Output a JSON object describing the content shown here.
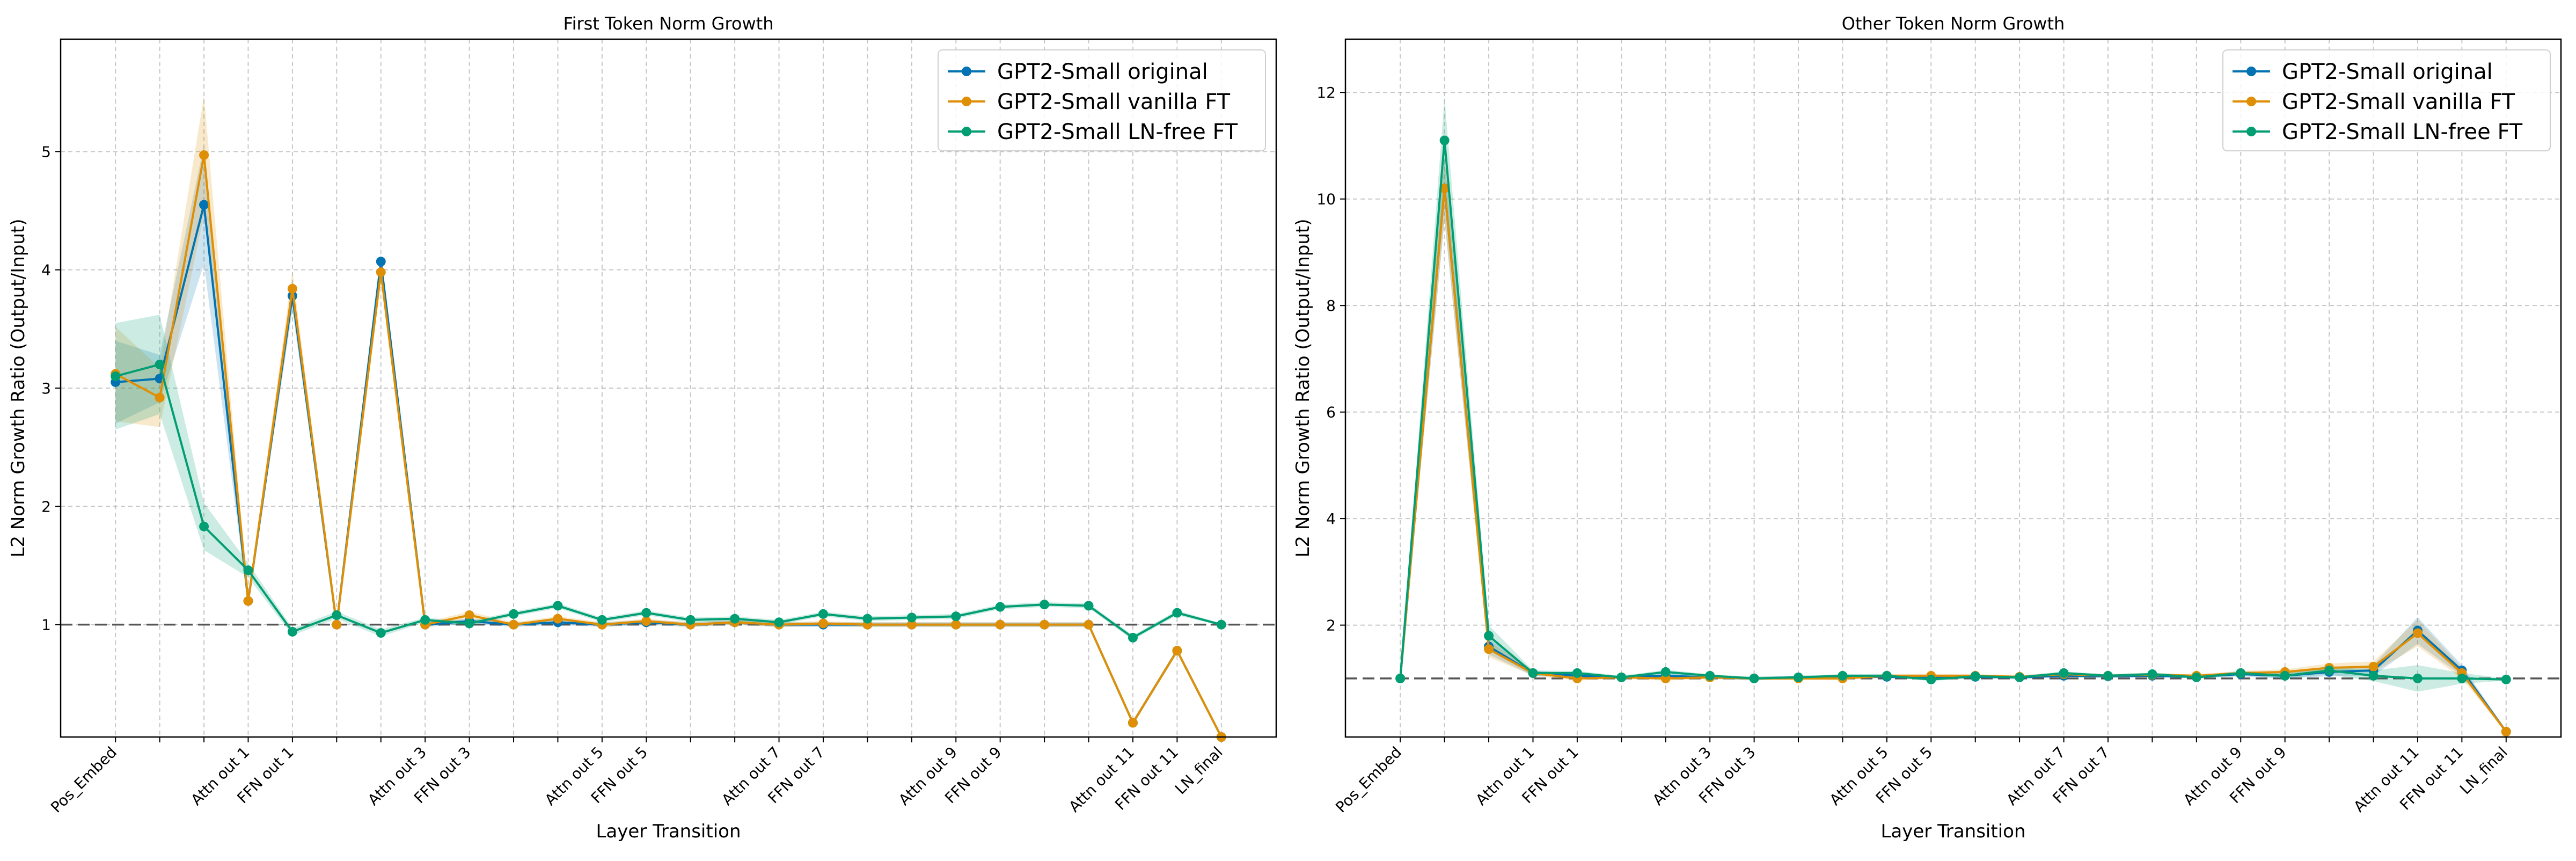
{
  "chart_data": [
    {
      "type": "line",
      "title": "First Token Norm Growth",
      "xlabel": "Layer Transition",
      "ylabel": "L2 Norm Growth Ratio (Output/Input)",
      "x_tick_labels": [
        "Pos_Embed",
        "",
        "",
        "Attn out 1",
        "FFN out 1",
        "",
        "",
        "Attn out 3",
        "FFN out 3",
        "",
        "",
        "Attn out 5",
        "FFN out 5",
        "",
        "",
        "Attn out 7",
        "FFN out 7",
        "",
        "",
        "Attn out 9",
        "FFN out 9",
        "",
        "",
        "Attn out 11",
        "FFN out 11",
        "LN_final"
      ],
      "ylim": [
        0.05,
        5.95
      ],
      "y_ticks": [
        1,
        2,
        3,
        4,
        5
      ],
      "reference_line": 1.0,
      "grid": true,
      "legend_position": "top-right",
      "series": [
        {
          "name": "GPT2-Small original",
          "color": "#0173b2",
          "values": [
            3.05,
            3.08,
            4.55,
            1.2,
            3.78,
            1.0,
            4.07,
            1.0,
            1.03,
            1.0,
            1.02,
            1.0,
            1.02,
            1.0,
            1.02,
            1.0,
            1.0,
            1.0,
            1.0,
            1.0,
            1.0,
            1.0,
            1.0,
            0.17,
            0.78,
            0.05
          ],
          "band": [
            0.35,
            0.2,
            0.5,
            0.04,
            0.12,
            0.02,
            0.06,
            0.02,
            0.02,
            0.02,
            0.02,
            0.02,
            0.02,
            0.02,
            0.02,
            0.02,
            0.02,
            0.02,
            0.02,
            0.02,
            0.02,
            0.02,
            0.02,
            0.02,
            0.02,
            0.01
          ]
        },
        {
          "name": "GPT2-Small vanilla FT",
          "color": "#de8f05",
          "values": [
            3.12,
            2.92,
            4.97,
            1.2,
            3.84,
            1.0,
            3.98,
            1.0,
            1.08,
            1.0,
            1.05,
            1.0,
            1.03,
            1.0,
            1.02,
            1.0,
            1.01,
            1.0,
            1.0,
            1.0,
            1.0,
            1.0,
            1.0,
            0.17,
            0.78,
            0.05
          ],
          "band": [
            0.4,
            0.25,
            0.5,
            0.04,
            0.15,
            0.02,
            0.06,
            0.02,
            0.03,
            0.02,
            0.02,
            0.02,
            0.02,
            0.02,
            0.02,
            0.02,
            0.02,
            0.02,
            0.02,
            0.02,
            0.02,
            0.02,
            0.02,
            0.02,
            0.02,
            0.01
          ]
        },
        {
          "name": "GPT2-Small LN-free FT",
          "color": "#029e73",
          "values": [
            3.1,
            3.2,
            1.83,
            1.46,
            0.94,
            1.08,
            0.93,
            1.04,
            1.01,
            1.09,
            1.16,
            1.04,
            1.1,
            1.04,
            1.05,
            1.02,
            1.09,
            1.05,
            1.06,
            1.07,
            1.15,
            1.17,
            1.16,
            0.89,
            1.1,
            1.0
          ],
          "band": [
            0.45,
            0.42,
            0.2,
            0.06,
            0.03,
            0.03,
            0.03,
            0.02,
            0.02,
            0.02,
            0.02,
            0.02,
            0.02,
            0.02,
            0.02,
            0.02,
            0.02,
            0.02,
            0.02,
            0.02,
            0.02,
            0.02,
            0.02,
            0.02,
            0.02,
            0.01
          ]
        }
      ]
    },
    {
      "type": "line",
      "title": "Other Token Norm Growth",
      "xlabel": "Layer Transition",
      "ylabel": "L2 Norm Growth Ratio (Output/Input)",
      "x_tick_labels": [
        "Pos_Embed",
        "",
        "",
        "Attn out 1",
        "FFN out 1",
        "",
        "",
        "Attn out 3",
        "FFN out 3",
        "",
        "",
        "Attn out 5",
        "FFN out 5",
        "",
        "",
        "Attn out 7",
        "FFN out 7",
        "",
        "",
        "Attn out 9",
        "FFN out 9",
        "",
        "",
        "Attn out 11",
        "FFN out 11",
        "LN_final"
      ],
      "ylim": [
        -0.1,
        13.0
      ],
      "y_ticks": [
        2,
        4,
        6,
        8,
        10,
        12
      ],
      "reference_line": 1.0,
      "grid": true,
      "legend_position": "top-right",
      "series": [
        {
          "name": "GPT2-Small original",
          "color": "#0173b2",
          "values": [
            1.0,
            10.2,
            1.6,
            1.1,
            1.05,
            1.02,
            1.05,
            1.02,
            1.0,
            1.02,
            1.03,
            1.03,
            1.02,
            1.03,
            1.02,
            1.05,
            1.04,
            1.05,
            1.03,
            1.08,
            1.05,
            1.12,
            1.15,
            1.9,
            1.15,
            0.0
          ],
          "band": [
            0.02,
            0.6,
            0.15,
            0.05,
            0.04,
            0.03,
            0.04,
            0.03,
            0.03,
            0.03,
            0.03,
            0.03,
            0.03,
            0.03,
            0.03,
            0.03,
            0.03,
            0.03,
            0.03,
            0.04,
            0.05,
            0.08,
            0.1,
            0.25,
            0.1,
            0.02
          ]
        },
        {
          "name": "GPT2-Small vanilla FT",
          "color": "#de8f05",
          "values": [
            1.0,
            10.2,
            1.55,
            1.1,
            1.0,
            1.02,
            1.0,
            1.02,
            1.0,
            1.0,
            1.0,
            1.05,
            1.05,
            1.05,
            1.03,
            1.08,
            1.05,
            1.07,
            1.05,
            1.1,
            1.12,
            1.2,
            1.22,
            1.85,
            1.1,
            0.0
          ],
          "band": [
            0.02,
            0.6,
            0.15,
            0.05,
            0.04,
            0.03,
            0.04,
            0.03,
            0.03,
            0.03,
            0.03,
            0.03,
            0.03,
            0.03,
            0.03,
            0.03,
            0.03,
            0.03,
            0.03,
            0.04,
            0.05,
            0.08,
            0.1,
            0.25,
            0.1,
            0.02
          ]
        },
        {
          "name": "GPT2-Small LN-free FT",
          "color": "#029e73",
          "values": [
            1.0,
            11.1,
            1.8,
            1.1,
            1.1,
            1.02,
            1.12,
            1.05,
            1.0,
            1.02,
            1.05,
            1.05,
            0.98,
            1.04,
            1.02,
            1.1,
            1.05,
            1.08,
            1.02,
            1.1,
            1.05,
            1.15,
            1.05,
            1.0,
            1.0,
            0.98
          ],
          "band": [
            0.02,
            0.8,
            0.2,
            0.05,
            0.04,
            0.03,
            0.04,
            0.03,
            0.03,
            0.03,
            0.03,
            0.03,
            0.03,
            0.03,
            0.03,
            0.03,
            0.03,
            0.03,
            0.03,
            0.04,
            0.05,
            0.08,
            0.1,
            0.25,
            0.1,
            0.02
          ]
        }
      ]
    }
  ]
}
